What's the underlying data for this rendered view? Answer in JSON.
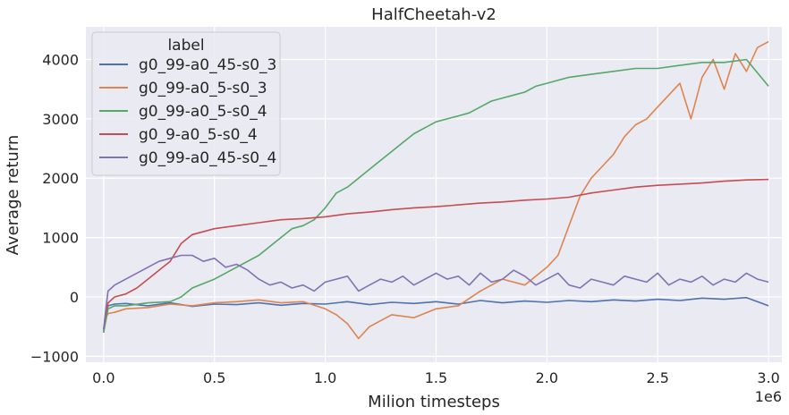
{
  "chart_data": {
    "type": "line",
    "title": "HalfCheetah-v2",
    "xlabel": "Milion timesteps",
    "ylabel": "Average return",
    "x_offset_label": "1e6",
    "xlim": [
      -0.08,
      3.06
    ],
    "ylim": [
      -1100,
      4550
    ],
    "xticks": [
      0.0,
      0.5,
      1.0,
      1.5,
      2.0,
      2.5,
      3.0
    ],
    "xtick_labels": [
      "0.0",
      "0.5",
      "1.0",
      "1.5",
      "2.0",
      "2.5",
      "3.0"
    ],
    "yticks": [
      -1000,
      0,
      1000,
      2000,
      3000,
      4000
    ],
    "ytick_labels": [
      "−1000",
      "0",
      "1000",
      "2000",
      "3000",
      "4000"
    ],
    "grid": true,
    "legend": {
      "title": "label",
      "placement": "top-left"
    },
    "colors": {
      "background": "#eaeaf2",
      "grid": "#ffffff",
      "series": [
        "#4c72b0",
        "#dd8452",
        "#55a868",
        "#c44e52",
        "#8172b3"
      ]
    },
    "series": [
      {
        "name": "g0_99-a0_45-s0_3",
        "x": [
          0.0,
          0.01,
          0.02,
          0.05,
          0.1,
          0.2,
          0.3,
          0.4,
          0.5,
          0.6,
          0.7,
          0.8,
          0.9,
          1.0,
          1.1,
          1.2,
          1.3,
          1.4,
          1.5,
          1.6,
          1.7,
          1.8,
          1.9,
          2.0,
          2.1,
          2.2,
          2.3,
          2.4,
          2.5,
          2.6,
          2.7,
          2.8,
          2.9,
          3.0
        ],
        "y": [
          -600,
          -300,
          -150,
          -120,
          -110,
          -150,
          -100,
          -160,
          -120,
          -130,
          -100,
          -140,
          -110,
          -120,
          -80,
          -130,
          -90,
          -110,
          -80,
          -120,
          -60,
          -100,
          -70,
          -90,
          -60,
          -80,
          -50,
          -70,
          -40,
          -60,
          -20,
          -40,
          -10,
          -150
        ]
      },
      {
        "name": "g0_99-a0_5-s0_3",
        "x": [
          0.0,
          0.01,
          0.02,
          0.05,
          0.1,
          0.2,
          0.3,
          0.4,
          0.5,
          0.6,
          0.7,
          0.8,
          0.9,
          1.0,
          1.05,
          1.1,
          1.15,
          1.2,
          1.3,
          1.4,
          1.5,
          1.6,
          1.7,
          1.8,
          1.9,
          2.0,
          2.05,
          2.1,
          2.15,
          2.2,
          2.25,
          2.3,
          2.35,
          2.4,
          2.45,
          2.5,
          2.55,
          2.6,
          2.65,
          2.7,
          2.75,
          2.8,
          2.85,
          2.9,
          2.95,
          3.0
        ],
        "y": [
          -550,
          -350,
          -280,
          -260,
          -200,
          -180,
          -120,
          -150,
          -100,
          -80,
          -50,
          -100,
          -80,
          -200,
          -300,
          -450,
          -700,
          -500,
          -300,
          -350,
          -200,
          -150,
          100,
          300,
          200,
          500,
          700,
          1200,
          1700,
          2000,
          2200,
          2400,
          2700,
          2900,
          3000,
          3200,
          3400,
          3600,
          3000,
          3700,
          4000,
          3500,
          4100,
          3800,
          4200,
          4300
        ]
      },
      {
        "name": "g0_99-a0_5-s0_4",
        "x": [
          0.0,
          0.01,
          0.02,
          0.05,
          0.1,
          0.2,
          0.3,
          0.35,
          0.4,
          0.5,
          0.55,
          0.6,
          0.7,
          0.75,
          0.8,
          0.85,
          0.9,
          0.95,
          1.0,
          1.05,
          1.1,
          1.15,
          1.2,
          1.25,
          1.3,
          1.35,
          1.4,
          1.45,
          1.5,
          1.55,
          1.6,
          1.65,
          1.7,
          1.75,
          1.8,
          1.85,
          1.9,
          1.95,
          2.0,
          2.1,
          2.2,
          2.3,
          2.4,
          2.5,
          2.6,
          2.7,
          2.8,
          2.9,
          3.0
        ],
        "y": [
          -600,
          -400,
          -200,
          -150,
          -150,
          -100,
          -80,
          0,
          150,
          300,
          400,
          500,
          700,
          850,
          1000,
          1150,
          1200,
          1300,
          1500,
          1750,
          1850,
          2000,
          2150,
          2300,
          2450,
          2600,
          2750,
          2850,
          2950,
          3000,
          3050,
          3100,
          3200,
          3300,
          3350,
          3400,
          3450,
          3550,
          3600,
          3700,
          3750,
          3800,
          3850,
          3850,
          3900,
          3950,
          3950,
          4000,
          3550
        ]
      },
      {
        "name": "g0_9-a0_5-s0_4",
        "x": [
          0.0,
          0.01,
          0.02,
          0.05,
          0.1,
          0.15,
          0.2,
          0.25,
          0.3,
          0.35,
          0.4,
          0.5,
          0.6,
          0.7,
          0.8,
          0.9,
          1.0,
          1.1,
          1.2,
          1.3,
          1.4,
          1.5,
          1.6,
          1.7,
          1.8,
          1.9,
          2.0,
          2.1,
          2.2,
          2.3,
          2.4,
          2.5,
          2.6,
          2.7,
          2.8,
          2.9,
          3.0
        ],
        "y": [
          -550,
          -300,
          -100,
          0,
          50,
          150,
          300,
          450,
          600,
          900,
          1050,
          1150,
          1200,
          1250,
          1300,
          1320,
          1350,
          1400,
          1430,
          1470,
          1500,
          1520,
          1550,
          1580,
          1600,
          1630,
          1650,
          1680,
          1750,
          1800,
          1850,
          1880,
          1900,
          1920,
          1950,
          1970,
          1980
        ]
      },
      {
        "name": "g0_99-a0_45-s0_4",
        "x": [
          0.0,
          0.01,
          0.02,
          0.05,
          0.1,
          0.15,
          0.2,
          0.25,
          0.3,
          0.35,
          0.4,
          0.45,
          0.5,
          0.55,
          0.6,
          0.65,
          0.7,
          0.75,
          0.8,
          0.85,
          0.9,
          0.95,
          1.0,
          1.05,
          1.1,
          1.15,
          1.2,
          1.25,
          1.3,
          1.35,
          1.4,
          1.45,
          1.5,
          1.55,
          1.6,
          1.65,
          1.7,
          1.75,
          1.8,
          1.85,
          1.9,
          1.95,
          2.0,
          2.05,
          2.1,
          2.15,
          2.2,
          2.25,
          2.3,
          2.35,
          2.4,
          2.45,
          2.5,
          2.55,
          2.6,
          2.65,
          2.7,
          2.75,
          2.8,
          2.85,
          2.9,
          2.95,
          3.0
        ],
        "y": [
          -550,
          -200,
          100,
          200,
          300,
          400,
          500,
          600,
          650,
          700,
          700,
          600,
          650,
          500,
          550,
          450,
          300,
          200,
          250,
          150,
          200,
          100,
          250,
          300,
          350,
          100,
          200,
          300,
          250,
          350,
          200,
          300,
          400,
          300,
          350,
          200,
          400,
          250,
          300,
          450,
          350,
          200,
          300,
          400,
          200,
          150,
          300,
          250,
          200,
          350,
          300,
          250,
          400,
          200,
          300,
          250,
          350,
          200,
          300,
          250,
          400,
          300,
          250
        ]
      }
    ]
  }
}
